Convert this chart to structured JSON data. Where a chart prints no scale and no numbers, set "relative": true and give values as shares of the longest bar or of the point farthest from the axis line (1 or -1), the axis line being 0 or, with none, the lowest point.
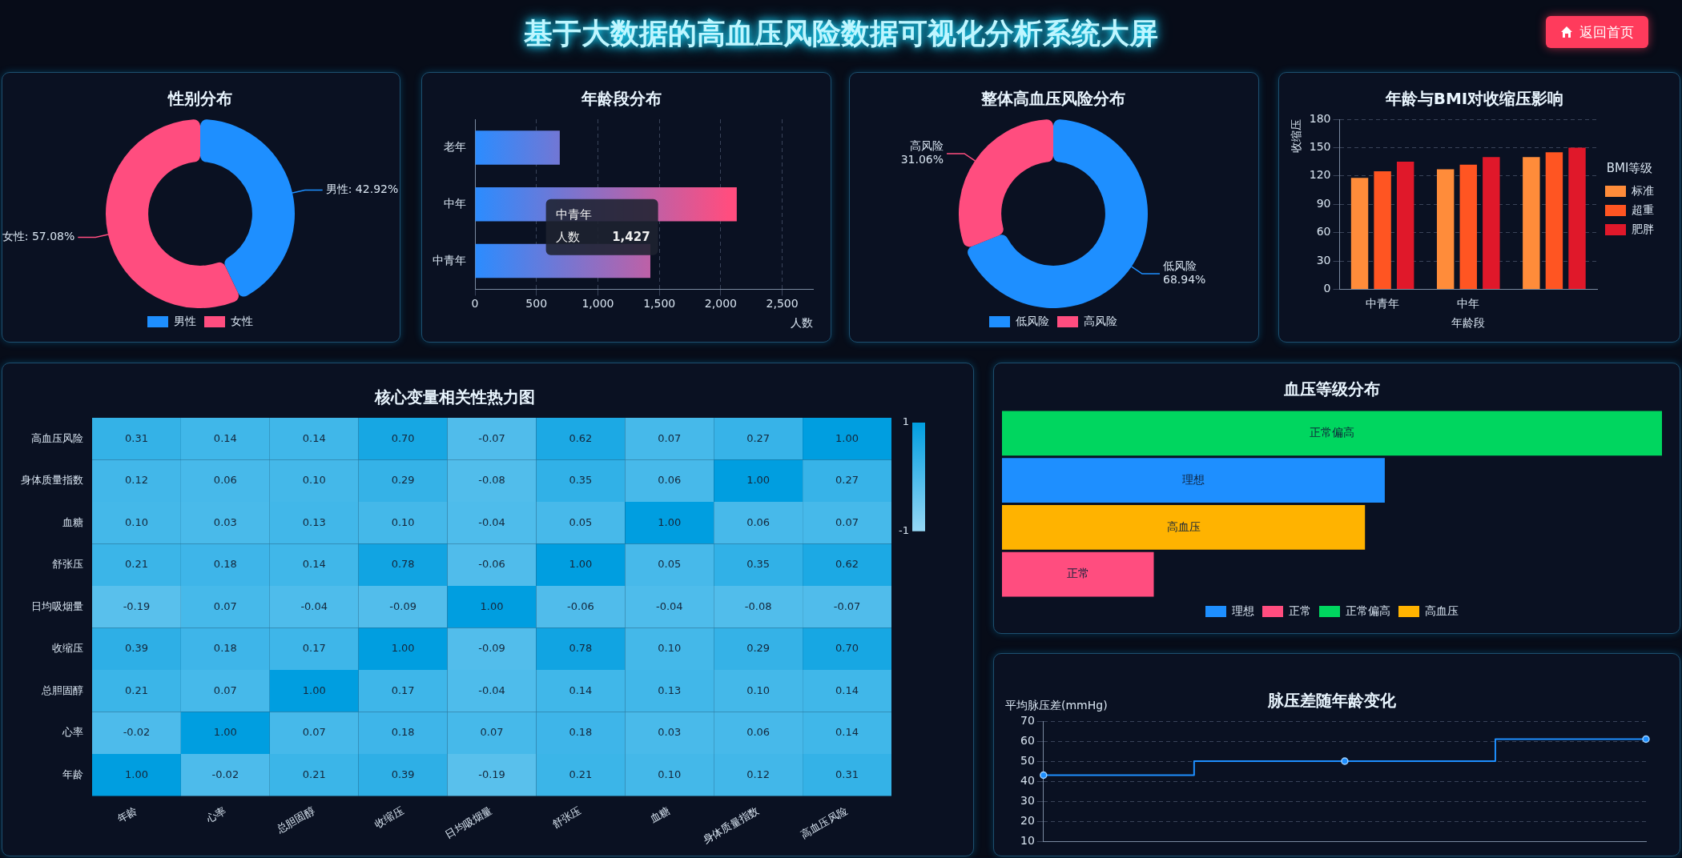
{
  "chart_data": [
    {
      "type": "other",
      "title": "基于大数据的高血压风险数据可视化分析系统大屏",
      "annotations": [
        "返回首页"
      ]
    },
    {
      "type": "donut",
      "title": "性别分布",
      "categories": [
        "男性",
        "女性"
      ],
      "values": [
        42.92,
        57.08
      ],
      "colors": [
        "#1e8fff",
        "#ff4d7f"
      ],
      "value_labels": [
        "男性: 42.92%",
        "女性: 57.08%"
      ],
      "legend": "bottom"
    },
    {
      "type": "bar",
      "orientation": "horizontal",
      "title": "年龄段分布",
      "categories": [
        "老年",
        "中年",
        "中青年"
      ],
      "values": [
        690,
        2130,
        1427
      ],
      "color": "#2b8cff",
      "xlim": [
        0,
        2750
      ],
      "xticks": [
        0,
        500,
        {
          "value": 1000,
          "label": "1,000"
        },
        {
          "value": 1500,
          "label": "1,500"
        },
        {
          "value": 2000,
          "label": "2,000"
        },
        {
          "value": 2500,
          "label": "2,500"
        }
      ],
      "xlabel": "人数",
      "grid": "x",
      "annotations": [
        "中青年",
        "人数",
        "1,427"
      ]
    },
    {
      "type": "donut",
      "title": "整体高血压风险分布",
      "categories": [
        "低风险",
        "高风险"
      ],
      "values": [
        68.94,
        31.06
      ],
      "colors": [
        "#1e8fff",
        "#ff4d7f"
      ],
      "value_labels": [
        "低风险\n68.94%",
        "高风险\n31.06%"
      ],
      "legend": "bottom"
    },
    {
      "type": "bar",
      "title": "年龄与BMI对收缩压影响",
      "categories": [
        "中青年",
        "中年",
        null
      ],
      "xlabel": "年龄段",
      "ylabel": "收缩压",
      "legend_title": "BMI等级",
      "legend": "right",
      "ylim": [
        0,
        180
      ],
      "yticks": [
        0,
        30,
        60,
        90,
        120,
        150,
        180
      ],
      "grid": "y",
      "series": [
        {
          "name": "标准",
          "color": "#ff8c3a",
          "values": [
            118,
            127,
            140
          ]
        },
        {
          "name": "超重",
          "color": "#ff5522",
          "values": [
            125,
            132,
            145
          ]
        },
        {
          "name": "肥胖",
          "color": "#e0182a",
          "values": [
            135,
            140,
            150
          ]
        }
      ]
    },
    {
      "type": "heatmap",
      "title": "核心变量相关性热力图",
      "categories": [
        "年龄",
        "心率",
        "总胆固醇",
        "收缩压",
        "日均吸烟量",
        "舒张压",
        "血糖",
        "身体质量指数",
        "高血压风险"
      ],
      "y_categories": [
        "高血压风险",
        "身体质量指数",
        "血糖",
        "舒张压",
        "日均吸烟量",
        "收缩压",
        "总胆固醇",
        "心率",
        "年龄"
      ],
      "clim": [
        -1,
        1
      ],
      "cticks": [
        -1,
        1
      ],
      "cells": [
        [
          0.31,
          0.14,
          0.14,
          0.7,
          -0.07,
          0.62,
          0.07,
          0.27,
          1.0
        ],
        [
          0.12,
          0.06,
          0.1,
          0.29,
          -0.08,
          0.35,
          0.06,
          1.0,
          0.27
        ],
        [
          0.1,
          0.03,
          0.13,
          0.1,
          -0.04,
          0.05,
          1.0,
          0.06,
          0.07
        ],
        [
          0.21,
          0.18,
          0.14,
          0.78,
          -0.06,
          1.0,
          0.05,
          0.35,
          0.62
        ],
        [
          -0.19,
          0.07,
          -0.04,
          -0.09,
          1.0,
          -0.06,
          -0.04,
          -0.08,
          -0.07
        ],
        [
          0.39,
          0.18,
          0.17,
          1.0,
          -0.09,
          0.78,
          0.1,
          0.29,
          0.7
        ],
        [
          0.21,
          0.07,
          1.0,
          0.17,
          -0.04,
          0.14,
          0.13,
          0.1,
          0.14
        ],
        [
          -0.02,
          1.0,
          0.07,
          0.18,
          0.07,
          0.18,
          0.03,
          0.06,
          0.14
        ],
        [
          1.0,
          -0.02,
          0.21,
          0.39,
          -0.19,
          0.21,
          0.1,
          0.12,
          0.31
        ]
      ],
      "cell_labels": [
        [
          "0.31",
          "0.14",
          "0.14",
          "0.70",
          "-0.07",
          "0.62",
          "0.07",
          "0.27",
          "1.00"
        ],
        [
          "0.12",
          "0.06",
          "0.10",
          "0.29",
          "-0.08",
          "0.35",
          "0.06",
          "1.00",
          "0.27"
        ],
        [
          "0.10",
          "0.03",
          "0.13",
          "0.10",
          "-0.04",
          "0.05",
          "1.00",
          "0.06",
          "0.07"
        ],
        [
          "0.21",
          "0.18",
          "0.14",
          "0.78",
          "-0.06",
          "1.00",
          "0.05",
          "0.35",
          "0.62"
        ],
        [
          "-0.19",
          "0.07",
          "-0.04",
          "-0.09",
          "1.00",
          "-0.06",
          "-0.04",
          "-0.08",
          "-0.07"
        ],
        [
          "0.39",
          "0.18",
          "0.17",
          "1.00",
          "-0.09",
          "0.78",
          "0.10",
          "0.29",
          "0.70"
        ],
        [
          "0.21",
          "0.07",
          "1.00",
          "0.17",
          "-0.04",
          "0.14",
          "0.13",
          "0.10",
          "0.14"
        ],
        [
          "-0.02",
          "1.00",
          "0.07",
          "0.18",
          "0.07",
          "0.18",
          "0.03",
          "0.06",
          "0.14"
        ],
        [
          "1.00",
          "-0.02",
          "0.21",
          "0.39",
          "-0.19",
          "0.21",
          "0.10",
          "0.12",
          "0.31"
        ]
      ]
    },
    {
      "type": "bar",
      "orientation": "horizontal",
      "relative": true,
      "stacked": true,
      "title": "血压等级分布",
      "categories": [
        "正常偏高",
        "理想",
        "高血压",
        "正常"
      ],
      "legend": "bottom",
      "tick_labels": false,
      "series": [
        {
          "name": "理想",
          "color": "#1e8fff",
          "values": [
            null,
            0.58,
            null,
            null
          ]
        },
        {
          "name": "正常",
          "color": "#ff4d7f",
          "values": [
            null,
            null,
            null,
            0.23
          ]
        },
        {
          "name": "正常偏高",
          "color": "#00d65f",
          "values": [
            1,
            null,
            null,
            null
          ]
        },
        {
          "name": "高血压",
          "color": "#ffb300",
          "values": [
            null,
            null,
            0.55,
            null
          ]
        }
      ]
    },
    {
      "type": "step",
      "title": "脉压差随年龄变化",
      "categories": [
        null,
        null,
        null
      ],
      "values": [
        43,
        50,
        61
      ],
      "color": "#1e8fff",
      "ylabel": "平均脉压差(mmHg)",
      "ylim": [
        10,
        70
      ],
      "yticks": [
        10,
        20,
        30,
        40,
        50,
        60,
        70
      ],
      "grid": "y",
      "marker": "circle",
      "tick_labels": "y"
    }
  ]
}
